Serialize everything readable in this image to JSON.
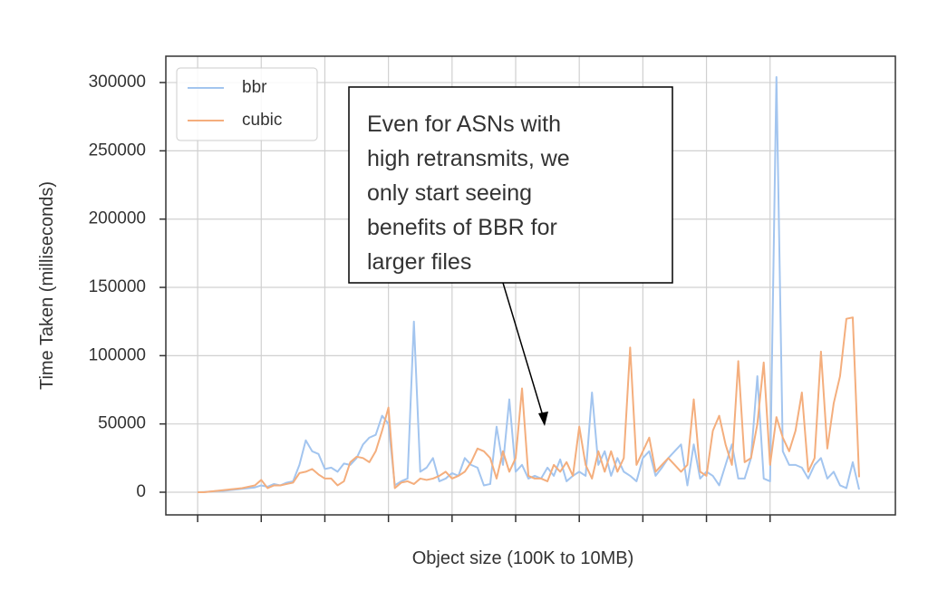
{
  "chart_data": {
    "type": "line",
    "x_label": "Object size (100K to 10MB)",
    "y_label": "Time Taken (milliseconds)",
    "annotation": [
      "Even for ASNs with",
      "high retransmits, we",
      "only start seeing",
      "benefits of BBR for",
      "larger files"
    ],
    "legend": "upper left",
    "grid": true,
    "x": [
      0,
      1,
      2,
      3,
      4,
      5,
      6,
      7,
      8,
      9,
      10,
      11,
      12,
      13,
      14,
      15,
      16,
      17,
      18,
      19,
      20,
      21,
      22,
      23,
      24,
      25,
      26,
      27,
      28,
      29,
      30,
      31,
      32,
      33,
      34,
      35,
      36,
      37,
      38,
      39,
      40,
      41,
      42,
      43,
      44,
      45,
      46,
      47,
      48,
      49,
      50,
      51,
      52,
      53,
      54,
      55,
      56,
      57,
      58,
      59,
      60,
      61,
      62,
      63,
      64,
      65,
      66,
      67,
      68,
      69,
      70,
      71,
      72,
      73,
      74,
      75,
      76,
      77,
      78,
      79,
      80,
      81,
      82,
      83,
      84,
      85,
      86,
      87,
      88,
      89,
      90,
      91,
      92,
      93,
      94,
      95,
      96,
      97,
      98,
      99,
      100,
      101,
      102,
      103,
      104
    ],
    "xlim": [
      -5,
      109.7
    ],
    "xticks": [
      0,
      10,
      20,
      30,
      40,
      50,
      60,
      70,
      80,
      90
    ],
    "ylim": [
      -16600,
      319300
    ],
    "yticks": [
      0,
      50000,
      100000,
      150000,
      200000,
      250000,
      300000
    ],
    "series": [
      {
        "name": "bbr",
        "color": "#a3c5ef",
        "values": [
          0,
          200,
          500,
          800,
          1000,
          1500,
          2000,
          2500,
          3000,
          3500,
          5000,
          4000,
          6000,
          5000,
          7000,
          8000,
          20000,
          38000,
          30000,
          28000,
          17000,
          18000,
          15000,
          21000,
          20000,
          25000,
          35000,
          40000,
          42000,
          56000,
          50000,
          5000,
          8000,
          10000,
          125000,
          15000,
          18000,
          25000,
          8000,
          10000,
          14000,
          12000,
          25000,
          20000,
          18000,
          5000,
          6000,
          48000,
          20000,
          68000,
          15000,
          20000,
          10000,
          12000,
          10000,
          18000,
          12000,
          24000,
          8000,
          12000,
          15000,
          12000,
          73000,
          20000,
          30000,
          12000,
          25000,
          15000,
          12000,
          8000,
          25000,
          30000,
          12000,
          18000,
          25000,
          30000,
          35000,
          5000,
          35000,
          10000,
          15000,
          12000,
          5000,
          20000,
          35000,
          10000,
          10000,
          25000,
          85000,
          10000,
          8000,
          304000,
          30000,
          20000,
          20000,
          18000,
          10000,
          20000,
          25000,
          10000,
          15000,
          5000,
          3000,
          22000,
          2000
        ]
      },
      {
        "name": "cubic",
        "color": "#f4ae7d",
        "values": [
          0,
          0,
          500,
          1000,
          1500,
          2000,
          2500,
          3000,
          4000,
          5000,
          9000,
          3000,
          5000,
          5000,
          6000,
          7000,
          14000,
          15000,
          17000,
          13000,
          10000,
          10000,
          5000,
          8000,
          22000,
          26000,
          25000,
          22000,
          30000,
          45000,
          62000,
          3000,
          7000,
          8000,
          6000,
          10000,
          9000,
          10000,
          12000,
          15000,
          10000,
          12000,
          15000,
          22000,
          32000,
          30000,
          25000,
          10000,
          30000,
          15000,
          25000,
          76000,
          12000,
          10000,
          10000,
          8000,
          20000,
          15000,
          22000,
          12000,
          48000,
          20000,
          10000,
          30000,
          15000,
          30000,
          15000,
          25000,
          106000,
          20000,
          30000,
          40000,
          15000,
          20000,
          25000,
          20000,
          15000,
          20000,
          68000,
          15000,
          12000,
          45000,
          56000,
          35000,
          20000,
          96000,
          22000,
          25000,
          50000,
          95000,
          20000,
          55000,
          40000,
          30000,
          45000,
          73000,
          15000,
          25000,
          103000,
          32000,
          65000,
          85000,
          127000,
          128000,
          11000
        ]
      }
    ]
  }
}
